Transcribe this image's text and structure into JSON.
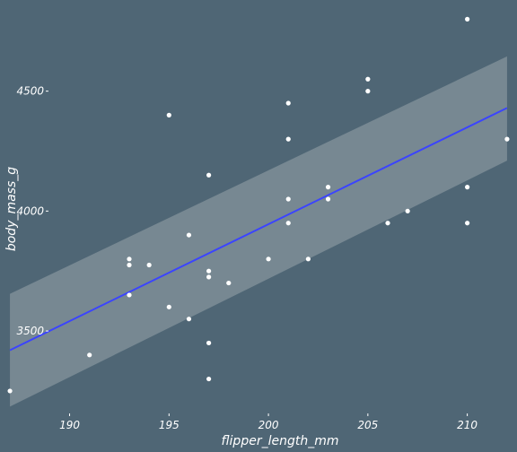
{
  "chart_data": {
    "type": "scatter",
    "xlabel": "flipper_length_mm",
    "ylabel": "body_mass_g",
    "xlim": [
      186.5,
      212.5
    ],
    "ylim": [
      3160,
      4880
    ],
    "xticks": [
      190,
      195,
      200,
      205,
      210
    ],
    "yticks": [
      3500,
      4000,
      4500
    ],
    "grid": false,
    "colors": {
      "background": "#4f6675",
      "points": "#ffffff",
      "fit_line": "#3b44ff",
      "confidence_band": "#7e8e98"
    },
    "points": [
      {
        "x": 187,
        "y": 3250
      },
      {
        "x": 191,
        "y": 3400
      },
      {
        "x": 193,
        "y": 3650
      },
      {
        "x": 193,
        "y": 3775
      },
      {
        "x": 193,
        "y": 3800
      },
      {
        "x": 194,
        "y": 3775
      },
      {
        "x": 195,
        "y": 3600
      },
      {
        "x": 195,
        "y": 4400
      },
      {
        "x": 196,
        "y": 3550
      },
      {
        "x": 196,
        "y": 3900
      },
      {
        "x": 197,
        "y": 3300
      },
      {
        "x": 197,
        "y": 3450
      },
      {
        "x": 197,
        "y": 3725
      },
      {
        "x": 197,
        "y": 3750
      },
      {
        "x": 197,
        "y": 4150
      },
      {
        "x": 198,
        "y": 3700
      },
      {
        "x": 200,
        "y": 3800
      },
      {
        "x": 201,
        "y": 3950
      },
      {
        "x": 201,
        "y": 4050
      },
      {
        "x": 201,
        "y": 4300
      },
      {
        "x": 201,
        "y": 4450
      },
      {
        "x": 202,
        "y": 3800
      },
      {
        "x": 203,
        "y": 4050
      },
      {
        "x": 203,
        "y": 4100
      },
      {
        "x": 205,
        "y": 4500
      },
      {
        "x": 205,
        "y": 4550
      },
      {
        "x": 206,
        "y": 3950
      },
      {
        "x": 207,
        "y": 4000
      },
      {
        "x": 210,
        "y": 3950
      },
      {
        "x": 210,
        "y": 4100
      },
      {
        "x": 210,
        "y": 4800
      },
      {
        "x": 212,
        "y": 4300
      }
    ],
    "fit": {
      "x": [
        187,
        212
      ],
      "y": [
        3420,
        4430
      ],
      "band_upper": [
        3655,
        4645
      ],
      "band_lower": [
        3185,
        4210
      ]
    }
  }
}
